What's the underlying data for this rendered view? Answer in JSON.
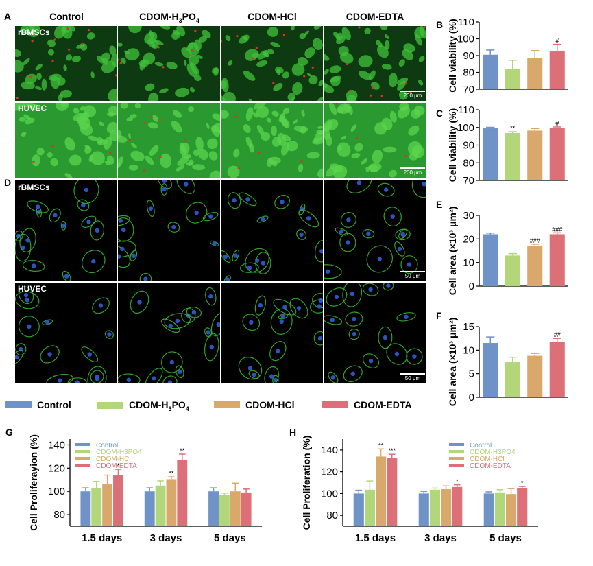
{
  "panels": {
    "A": "A",
    "B": "B",
    "C": "C",
    "D": "D",
    "E": "E",
    "F": "F",
    "G": "G",
    "H": "H"
  },
  "colors": {
    "control": "#6f93c7",
    "h3po4": "#b2d67a",
    "hcl": "#d9a96b",
    "edta": "#dc6f78",
    "tile_green": "#1f8a2a",
    "tile_dark": "#0a1a08",
    "cell_green": "#3ec23b",
    "nuclei_blue": "#2a55c0",
    "dead_red": "#e0302a"
  },
  "columns": {
    "control": "Control",
    "h3po4_base": "CDOM-H",
    "h3po4_sub1": "3",
    "h3po4_mid": "PO",
    "h3po4_sub2": "4",
    "hcl": "CDOM-HCl",
    "edta": "CDOM-EDTA"
  },
  "rows": {
    "a_top": "rBMSCs",
    "a_bottom": "HUVEC",
    "d_top": "rBMSCs",
    "d_bottom": "HUVEC"
  },
  "scalebars": {
    "a": "200 μm",
    "d": "50 μm"
  },
  "legend": {
    "control": "Control",
    "h3po4": "CDOM-H3PO4",
    "hcl": "CDOM-HCl",
    "edta": "CDOM-EDTA"
  },
  "chart_data": [
    {
      "panel": "B",
      "type": "bar",
      "ylabel": "Cell viability (%)",
      "ylim": [
        70,
        110
      ],
      "yticks": [
        70,
        80,
        90,
        100,
        110
      ],
      "categories": [
        "Control",
        "CDOM-H3PO4",
        "CDOM-HCl",
        "CDOM-EDTA"
      ],
      "values": [
        90.5,
        82,
        88.5,
        92.5
      ],
      "errors": [
        2.8,
        5.2,
        4.5,
        4.2
      ],
      "annotations": [
        "",
        "",
        "",
        "#"
      ]
    },
    {
      "panel": "C",
      "type": "bar",
      "ylabel": "Cell viability (%)",
      "ylim": [
        70,
        110
      ],
      "yticks": [
        70,
        80,
        90,
        100,
        110
      ],
      "categories": [
        "Control",
        "CDOM-H3PO4",
        "CDOM-HCl",
        "CDOM-EDTA"
      ],
      "values": [
        99.5,
        96.8,
        98.2,
        99.8
      ],
      "errors": [
        0.6,
        0.8,
        1.2,
        0.5
      ],
      "annotations": [
        "",
        "**",
        "",
        "#"
      ]
    },
    {
      "panel": "E",
      "type": "bar",
      "ylabel": "Cell area (×10³ μm²)",
      "ylim": [
        0,
        30
      ],
      "yticks": [
        0,
        10,
        20,
        30
      ],
      "categories": [
        "Control",
        "CDOM-H3PO4",
        "CDOM-HCl",
        "CDOM-EDTA"
      ],
      "values": [
        22,
        13,
        17,
        22
      ],
      "errors": [
        0.5,
        0.8,
        0.8,
        0.6
      ],
      "annotations": [
        "",
        "",
        "###",
        "###"
      ]
    },
    {
      "panel": "F",
      "type": "bar",
      "ylabel": "Cell area (×10³ μm²)",
      "ylim": [
        0,
        15
      ],
      "yticks": [
        0,
        5,
        10,
        15
      ],
      "categories": [
        "Control",
        "CDOM-H3PO4",
        "CDOM-HCl",
        "CDOM-EDTA"
      ],
      "values": [
        11.5,
        7.5,
        8.8,
        11.7
      ],
      "errors": [
        1.3,
        1.0,
        0.5,
        0.8
      ],
      "annotations": [
        "",
        "",
        "",
        "##"
      ]
    },
    {
      "panel": "G",
      "type": "bar",
      "ylabel": "Cell Proliferayion (%)",
      "ylim": [
        70,
        145
      ],
      "yticks": [
        80,
        100,
        120,
        140
      ],
      "categories": [
        "1.5 days",
        "3 days",
        "5 days"
      ],
      "series": [
        {
          "name": "Control",
          "values": [
            100,
            100,
            100
          ],
          "errors": [
            3,
            3,
            3
          ],
          "annotations": [
            "",
            "",
            ""
          ]
        },
        {
          "name": "CDOM-H3PO4",
          "values": [
            102.5,
            105,
            97
          ],
          "errors": [
            6,
            4,
            1.5
          ],
          "annotations": [
            "",
            "",
            ""
          ]
        },
        {
          "name": "CDOM-HCl",
          "values": [
            106,
            110.5,
            100
          ],
          "errors": [
            8,
            2,
            7
          ],
          "annotations": [
            "",
            "**",
            ""
          ]
        },
        {
          "name": "CDOM-EDTA",
          "values": [
            114,
            127,
            99
          ],
          "errors": [
            5,
            5,
            3
          ],
          "annotations": [
            "*",
            "**",
            ""
          ]
        }
      ]
    },
    {
      "panel": "H",
      "type": "bar",
      "ylabel": "Cell Proliferation (%)",
      "ylim": [
        70,
        150
      ],
      "yticks": [
        80,
        100,
        120,
        140
      ],
      "categories": [
        "1.5 days",
        "3 days",
        "5 days"
      ],
      "series": [
        {
          "name": "Control",
          "values": [
            100,
            100,
            100
          ],
          "errors": [
            3,
            2,
            1.5
          ],
          "annotations": [
            "",
            "",
            ""
          ]
        },
        {
          "name": "CDOM-H3PO4",
          "values": [
            103.5,
            103.5,
            101
          ],
          "errors": [
            8,
            1.5,
            2.5
          ],
          "annotations": [
            "",
            "",
            ""
          ]
        },
        {
          "name": "CDOM-HCl",
          "values": [
            134,
            104,
            99.5
          ],
          "errors": [
            7,
            3,
            5
          ],
          "annotations": [
            "**",
            "",
            ""
          ]
        },
        {
          "name": "CDOM-EDTA",
          "values": [
            133,
            106,
            105
          ],
          "errors": [
            3,
            2,
            1.5
          ],
          "annotations": [
            "***",
            "*",
            "*"
          ]
        }
      ]
    }
  ]
}
